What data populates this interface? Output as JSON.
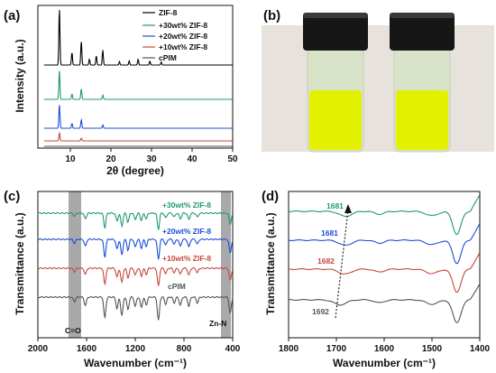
{
  "figure": {
    "panel_a_letter": "(a)",
    "panel_b_letter": "(b)",
    "panel_c_letter": "(c)",
    "panel_d_letter": "(d)",
    "vial_1": "b1",
    "vial_2": "b2",
    "band_co": "C=O",
    "band_znn": "Zn-N"
  },
  "colors": {
    "zif8": "#000000",
    "w30": "#1f9a73",
    "w20": "#1b4fd6",
    "w10": "#c8483d",
    "cpim": "#555555",
    "band_gray": "#a9a9a9",
    "liquid": "#e6f000",
    "cap": "#161616"
  },
  "chart_data": [
    {
      "id": "a",
      "type": "line",
      "xlabel": "2θ (degree)",
      "ylabel": "Intensity (a.u.)",
      "xlim": [
        2,
        50
      ],
      "xticks": [
        "10",
        "20",
        "30",
        "40",
        "50"
      ],
      "legend_position": "top-right",
      "series": [
        {
          "name": "ZIF-8",
          "color_key": "zif8",
          "peaks": [
            [
              7.3,
              1.0
            ],
            [
              10.4,
              0.22
            ],
            [
              12.7,
              0.42
            ],
            [
              14.7,
              0.1
            ],
            [
              16.4,
              0.16
            ],
            [
              18.0,
              0.26
            ],
            [
              22.1,
              0.06
            ],
            [
              24.5,
              0.07
            ],
            [
              26.7,
              0.1
            ],
            [
              29.6,
              0.07
            ],
            [
              32.4,
              0.05
            ]
          ]
        },
        {
          "name": "+30wt% ZIF-8",
          "color_key": "w30",
          "peaks": [
            [
              7.3,
              0.55
            ],
            [
              10.4,
              0.1
            ],
            [
              12.7,
              0.2
            ],
            [
              18.0,
              0.08
            ]
          ]
        },
        {
          "name": "+20wt% ZIF-8",
          "color_key": "w20",
          "peaks": [
            [
              7.3,
              0.45
            ],
            [
              10.4,
              0.09
            ],
            [
              12.7,
              0.16
            ],
            [
              18.0,
              0.06
            ]
          ]
        },
        {
          "name": "+10wt% ZIF-8",
          "color_key": "w10",
          "peaks": [
            [
              7.3,
              0.15
            ],
            [
              12.7,
              0.05
            ]
          ]
        },
        {
          "name": "cPIM",
          "color_key": "cpim",
          "peaks": []
        }
      ]
    },
    {
      "id": "c",
      "type": "line",
      "xlabel": "Wavenumber (cm⁻¹)",
      "ylabel": "Transmittance (a.u.)",
      "xlim": [
        2000,
        400
      ],
      "xticks": [
        "2000",
        "1600",
        "1200",
        "800",
        "400"
      ],
      "shaded_bands": [
        {
          "label": "C=O",
          "center": 1700
        },
        {
          "label": "Zn-N",
          "center": 425
        }
      ],
      "series_labels": [
        "+30wt% ZIF-8",
        "+20wt% ZIF-8",
        "+10wt% ZIF-8",
        "cPIM"
      ],
      "dips": [
        [
          1700,
          0.2
        ],
        [
          1610,
          0.35
        ],
        [
          1450,
          0.9
        ],
        [
          1350,
          0.5
        ],
        [
          1310,
          0.8
        ],
        [
          1260,
          0.55
        ],
        [
          1200,
          0.4
        ],
        [
          1150,
          0.45
        ],
        [
          1110,
          0.35
        ],
        [
          1010,
          1.0
        ],
        [
          950,
          0.3
        ],
        [
          880,
          0.25
        ],
        [
          830,
          0.35
        ],
        [
          760,
          0.4
        ],
        [
          690,
          0.25
        ],
        [
          420,
          0.7
        ]
      ]
    },
    {
      "id": "d",
      "type": "line",
      "xlabel": "Wavenumber (cm⁻¹)",
      "ylabel": "Transmittance (a.u.)",
      "xlim": [
        1800,
        1400
      ],
      "xticks": [
        "1800",
        "1700",
        "1600",
        "1500",
        "1400"
      ],
      "peak_labels": [
        "1681",
        "1681",
        "1682",
        "1692"
      ]
    }
  ]
}
